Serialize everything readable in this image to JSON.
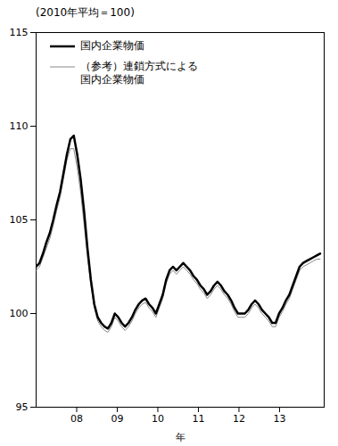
{
  "chart_data": {
    "type": "line",
    "title": "(2010年平均＝100)",
    "xlabel": "年",
    "x": [
      2007.0,
      2007.0843,
      2007.1687,
      2007.253,
      2007.3373,
      2007.4217,
      2007.506,
      2007.5904,
      2007.6747,
      2007.759,
      2007.8434,
      2007.9277,
      2008.012,
      2008.0964,
      2008.1807,
      2008.2651,
      2008.3494,
      2008.4337,
      2008.5181,
      2008.6024,
      2008.6867,
      2008.7711,
      2008.8554,
      2008.9398,
      2009.0241,
      2009.1084,
      2009.1928,
      2009.2771,
      2009.3614,
      2009.4458,
      2009.5301,
      2009.6145,
      2009.6988,
      2009.7831,
      2009.8675,
      2009.9518,
      2010.0361,
      2010.1205,
      2010.2048,
      2010.2892,
      2010.3735,
      2010.4578,
      2010.5422,
      2010.6265,
      2010.7108,
      2010.7952,
      2010.8795,
      2010.9639,
      2011.0482,
      2011.1325,
      2011.2169,
      2011.3012,
      2011.3855,
      2011.4699,
      2011.5542,
      2011.6386,
      2011.7229,
      2011.8072,
      2011.8916,
      2011.9759,
      2012.0602,
      2012.1446,
      2012.2289,
      2012.3133,
      2012.3976,
      2012.4819,
      2012.5663,
      2012.6506,
      2012.7349,
      2012.8193,
      2012.9036,
      2012.988,
      2013.0723,
      2013.1566,
      2013.241,
      2013.3253,
      2013.4096,
      2013.494,
      2013.5783,
      2013.6627,
      2013.747,
      2013.8313,
      2013.9157,
      2014.0
    ],
    "xlim": [
      2007.0,
      2014.1
    ],
    "xticks": [
      {
        "value": 2008,
        "label": "08"
      },
      {
        "value": 2009,
        "label": "09"
      },
      {
        "value": 2010,
        "label": "10"
      },
      {
        "value": 2011,
        "label": "11"
      },
      {
        "value": 2012,
        "label": "12"
      },
      {
        "value": 2013,
        "label": "13"
      }
    ],
    "ylim": [
      95,
      115
    ],
    "yticks": [
      95,
      100,
      105,
      110,
      115
    ],
    "grid": false,
    "legend": "upper left",
    "series": [
      {
        "name": "国内企業物価",
        "color": "#000000",
        "values": [
          102.5,
          102.7,
          103.2,
          103.8,
          104.3,
          105.0,
          105.8,
          106.5,
          107.5,
          108.5,
          109.3,
          109.5,
          108.5,
          107.2,
          105.5,
          103.5,
          101.8,
          100.5,
          99.8,
          99.5,
          99.3,
          99.2,
          99.5,
          100.0,
          99.8,
          99.5,
          99.3,
          99.5,
          99.8,
          100.2,
          100.5,
          100.7,
          100.8,
          100.5,
          100.3,
          100.0,
          100.5,
          101.0,
          101.8,
          102.3,
          102.5,
          102.3,
          102.5,
          102.7,
          102.5,
          102.3,
          102.0,
          101.8,
          101.5,
          101.3,
          101.0,
          101.2,
          101.5,
          101.7,
          101.5,
          101.2,
          101.0,
          100.7,
          100.3,
          100.0,
          100.0,
          100.0,
          100.2,
          100.5,
          100.7,
          100.5,
          100.2,
          100.0,
          99.8,
          99.5,
          99.5,
          100.0,
          100.3,
          100.7,
          101.0,
          101.5,
          102.0,
          102.5,
          102.7,
          102.8,
          102.9,
          103.0,
          103.1,
          103.2
        ]
      },
      {
        "name": "（参考）連鎖方式による\n国内企業物価",
        "color": "#888888",
        "values": [
          102.3,
          102.5,
          103.0,
          103.5,
          104.0,
          104.7,
          105.5,
          106.2,
          107.2,
          108.2,
          108.8,
          108.8,
          107.8,
          106.5,
          104.8,
          103.0,
          101.5,
          100.3,
          99.6,
          99.3,
          99.1,
          99.0,
          99.3,
          99.8,
          99.6,
          99.3,
          99.1,
          99.3,
          99.6,
          100.0,
          100.3,
          100.5,
          100.6,
          100.3,
          100.1,
          99.8,
          100.3,
          100.8,
          101.6,
          102.1,
          102.3,
          102.1,
          102.3,
          102.5,
          102.3,
          102.1,
          101.8,
          101.6,
          101.3,
          101.1,
          100.8,
          101.0,
          101.3,
          101.5,
          101.3,
          101.0,
          100.8,
          100.5,
          100.1,
          99.8,
          99.8,
          99.8,
          100.0,
          100.3,
          100.5,
          100.3,
          100.0,
          99.8,
          99.6,
          99.3,
          99.3,
          99.8,
          100.1,
          100.5,
          100.8,
          101.3,
          101.8,
          102.3,
          102.5,
          102.6,
          102.7,
          102.8,
          102.9,
          102.9
        ]
      }
    ]
  }
}
